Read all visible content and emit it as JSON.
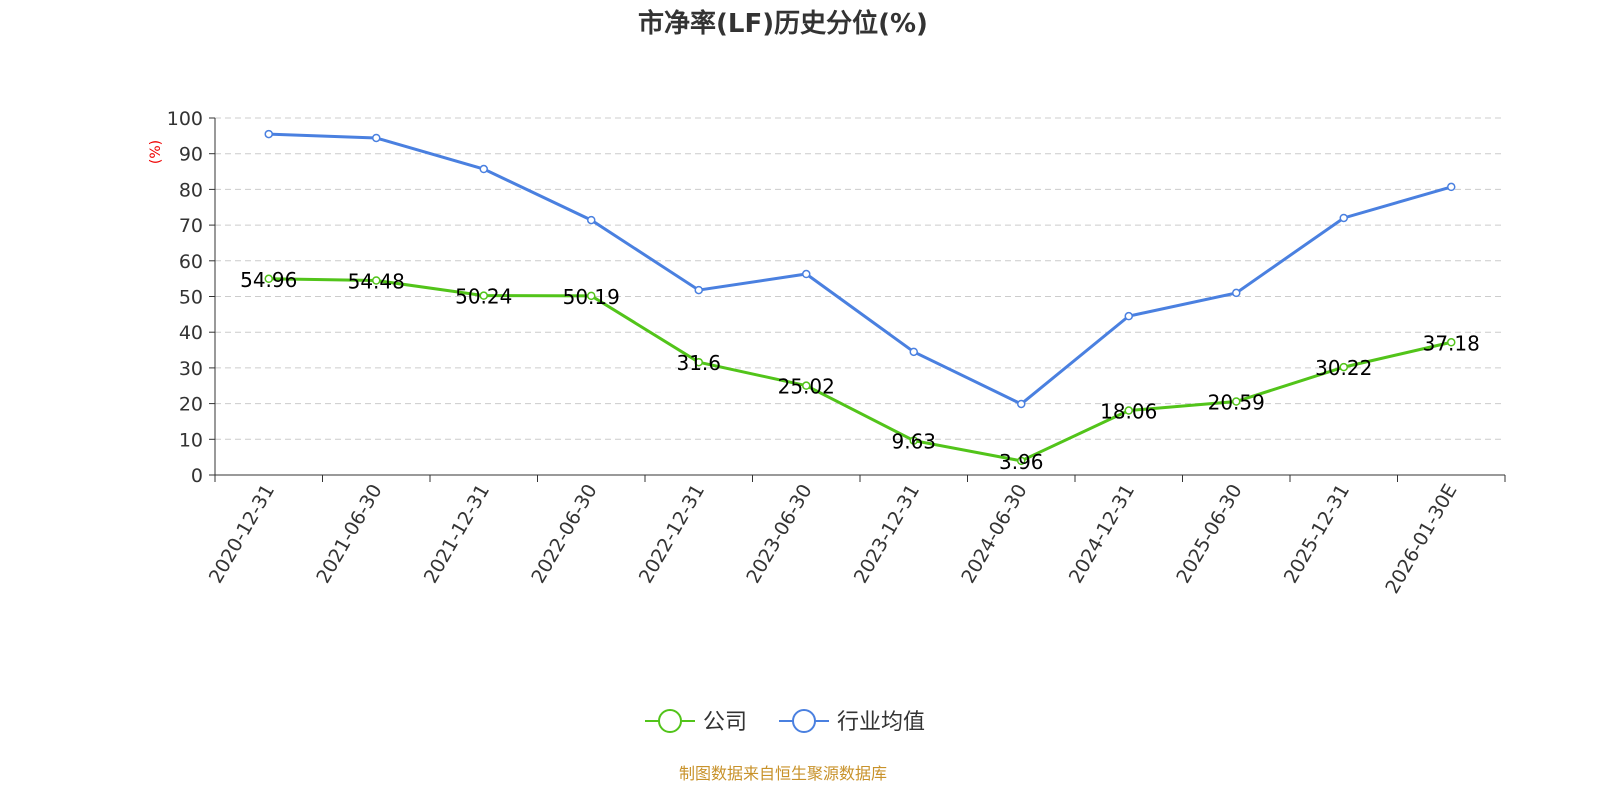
{
  "chart_data": {
    "type": "line",
    "title": "市净率(LF)历史分位(%)",
    "ylabel": "(%)",
    "xlabel": "",
    "ylim": [
      0,
      100
    ],
    "yticks": [
      0,
      10,
      20,
      30,
      40,
      50,
      60,
      70,
      80,
      90,
      100
    ],
    "grid": true,
    "legend_position": "bottom-center",
    "categories": [
      "2020-12-31",
      "2021-06-30",
      "2021-12-31",
      "2022-06-30",
      "2022-12-31",
      "2023-06-30",
      "2023-12-31",
      "2024-06-30",
      "2024-12-31",
      "2025-06-30",
      "2025-12-31",
      "2026-01-30E"
    ],
    "series": [
      {
        "name": "公司",
        "color": "#52c41a",
        "show_labels": true,
        "values": [
          54.96,
          54.48,
          50.24,
          50.19,
          31.6,
          25.02,
          9.63,
          3.96,
          18.06,
          20.59,
          30.22,
          37.18
        ]
      },
      {
        "name": "行业均值",
        "color": "#4a80e0",
        "show_labels": false,
        "values": [
          95.5,
          94.4,
          85.7,
          71.4,
          51.8,
          56.3,
          34.5,
          19.9,
          44.5,
          51.0,
          72.0,
          80.7
        ]
      }
    ]
  },
  "footer": "制图数据来自恒生聚源数据库"
}
